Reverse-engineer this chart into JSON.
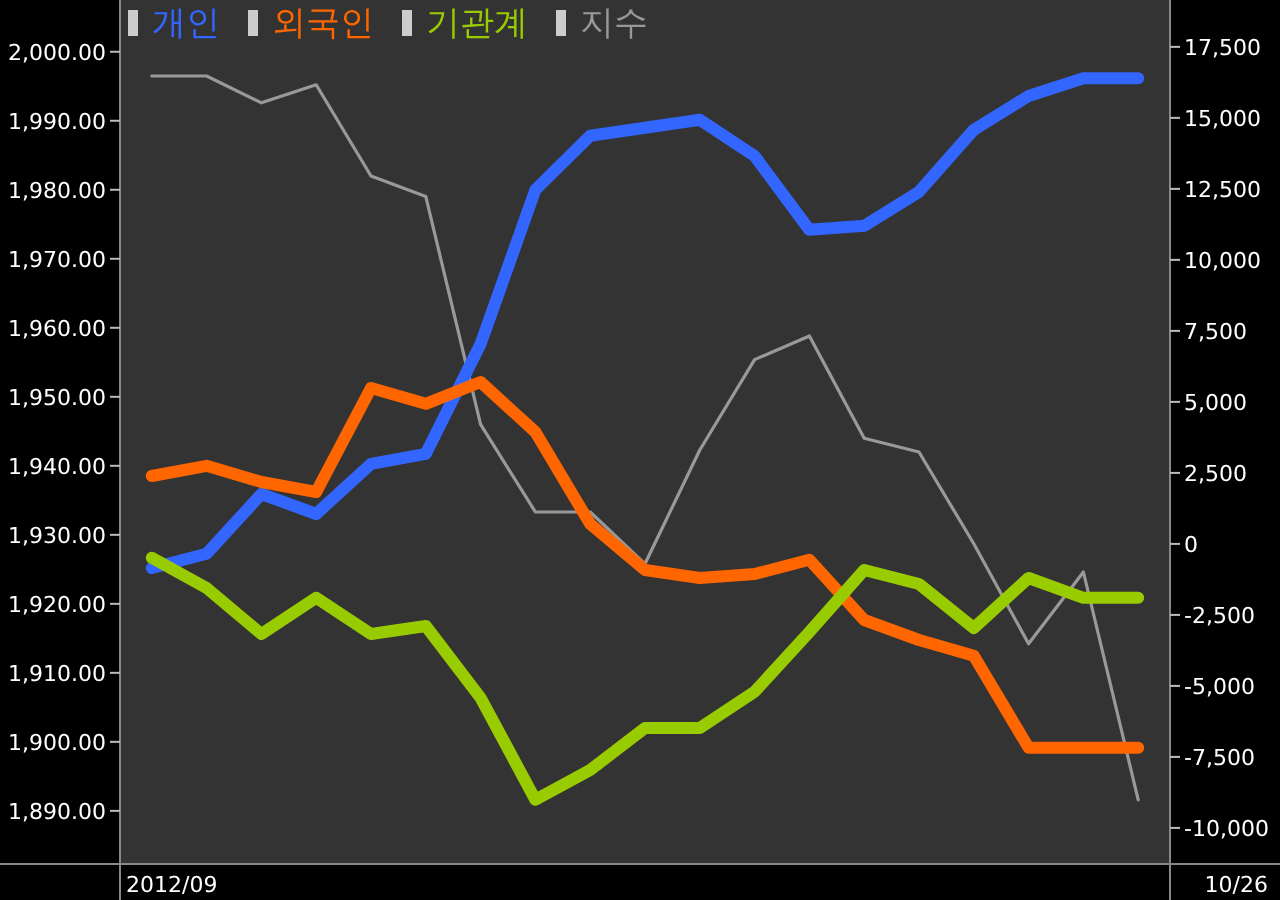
{
  "chart_data": {
    "type": "line",
    "categories": [
      null,
      null,
      null,
      null,
      null,
      null,
      null,
      null,
      null,
      null,
      null,
      null,
      null,
      null,
      null,
      null,
      null,
      null,
      null
    ],
    "series": [
      {
        "name": "개인",
        "color": "#3366ff",
        "axis": "y2",
        "values": [
          -850,
          -350,
          1760,
          1050,
          2820,
          3170,
          7040,
          12470,
          14370,
          14650,
          14930,
          13660,
          11060,
          11200,
          12400,
          14580,
          15770,
          16400,
          16400
        ]
      },
      {
        "name": "외국인",
        "color": "#ff6600",
        "axis": "y2",
        "values": [
          2390,
          2750,
          2180,
          1830,
          5490,
          4930,
          5700,
          3940,
          700,
          -920,
          -1200,
          -1060,
          -560,
          -2680,
          -3380,
          -3940,
          -7180,
          -7180,
          -7180
        ]
      },
      {
        "name": "기관계",
        "color": "#99cc00",
        "axis": "y2",
        "values": [
          -490,
          -1550,
          -3170,
          -1900,
          -3170,
          -2890,
          -5420,
          -9010,
          -7960,
          -6480,
          -6480,
          -5210,
          -3100,
          -920,
          -1410,
          -2960,
          -1200,
          -1900,
          -1900
        ]
      },
      {
        "name": "지수",
        "color": "#999999",
        "values": [
          1996.5,
          1996.5,
          1992.6,
          1995.2,
          1982,
          1979,
          1946,
          1933.3,
          1933.3,
          1925.8,
          1942.3,
          1955.4,
          1958.8,
          1944,
          1942,
          1928.7,
          1914.2,
          1924.6,
          1891.6
        ]
      }
    ],
    "ylim": [
      1882.3,
      2007.5
    ],
    "yticks": [
      {
        "value": 1890,
        "label": "1,890.00"
      },
      {
        "value": 1900,
        "label": "1,900.00"
      },
      {
        "value": 1910,
        "label": "1,910.00"
      },
      {
        "value": 1920,
        "label": "1,920.00"
      },
      {
        "value": 1930,
        "label": "1,930.00"
      },
      {
        "value": 1940,
        "label": "1,940.00"
      },
      {
        "value": 1950,
        "label": "1,950.00"
      },
      {
        "value": 1960,
        "label": "1,960.00"
      },
      {
        "value": 1970,
        "label": "1,970.00"
      },
      {
        "value": 1980,
        "label": "1,980.00"
      },
      {
        "value": 1990,
        "label": "1,990.00"
      },
      {
        "value": 2000,
        "label": "2,000.00"
      }
    ],
    "y2lim": [
      -11270,
      19150
    ],
    "y2ticks": [
      {
        "value": -10000,
        "label": "-10,000"
      },
      {
        "value": -7500,
        "label": "-7,500"
      },
      {
        "value": -5000,
        "label": "-5,000"
      },
      {
        "value": -2500,
        "label": "-2,500"
      },
      0,
      {
        "value": 2500,
        "label": "2,500"
      },
      {
        "value": 5000,
        "label": "5,000"
      },
      {
        "value": 7500,
        "label": "7,500"
      },
      {
        "value": 10000,
        "label": "10,000"
      },
      {
        "value": 12500,
        "label": "12,500"
      },
      {
        "value": 15000,
        "label": "15,000"
      },
      {
        "value": 17500,
        "label": "17,500"
      }
    ],
    "annotations": [
      "2012/09",
      "10/26"
    ],
    "legend": "top left",
    "grid": false,
    "marker": "none",
    "line_style": "solid"
  }
}
